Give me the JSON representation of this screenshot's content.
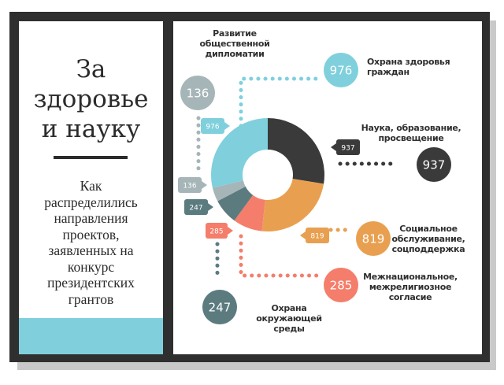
{
  "title": "За здоровье и науку",
  "title_lines": [
    "За",
    "здоровье",
    "и науку"
  ],
  "subtitle_lines": [
    "Как",
    "распределились",
    "направления",
    "проектов,",
    "заявленных на",
    "конкурс",
    "президентских",
    "грантов"
  ],
  "chart_data": {
    "type": "pie",
    "donut": true,
    "categories": [
      "Наука, образование, просвещение",
      "Социальное обслуживание, соцподдержка",
      "Межнациональное, межрелигиозное согласие",
      "Охрана окружающей среды",
      "Развитие общественной дипломатии",
      "Охрана здоровья граждан"
    ],
    "values": [
      937,
      819,
      285,
      247,
      136,
      976
    ],
    "colors": [
      "#3a3a3a",
      "#e8a050",
      "#f47e6b",
      "#5b7b7f",
      "#a6b5b8",
      "#7fd0dc"
    ]
  },
  "labels": {
    "diplomacy": [
      "Развитие",
      "общественной",
      "дипломатии"
    ],
    "health": [
      "Охрана здоровья",
      "граждан"
    ],
    "science": [
      "Наука, образование,",
      "просвещение"
    ],
    "social": [
      "Социальное",
      "обслуживание,",
      "соцподдержка"
    ],
    "interethnic": [
      "Межнациональное,",
      "межрелигиозное",
      "согласие"
    ],
    "ecology": [
      "Охрана окружающей",
      "среды"
    ]
  }
}
